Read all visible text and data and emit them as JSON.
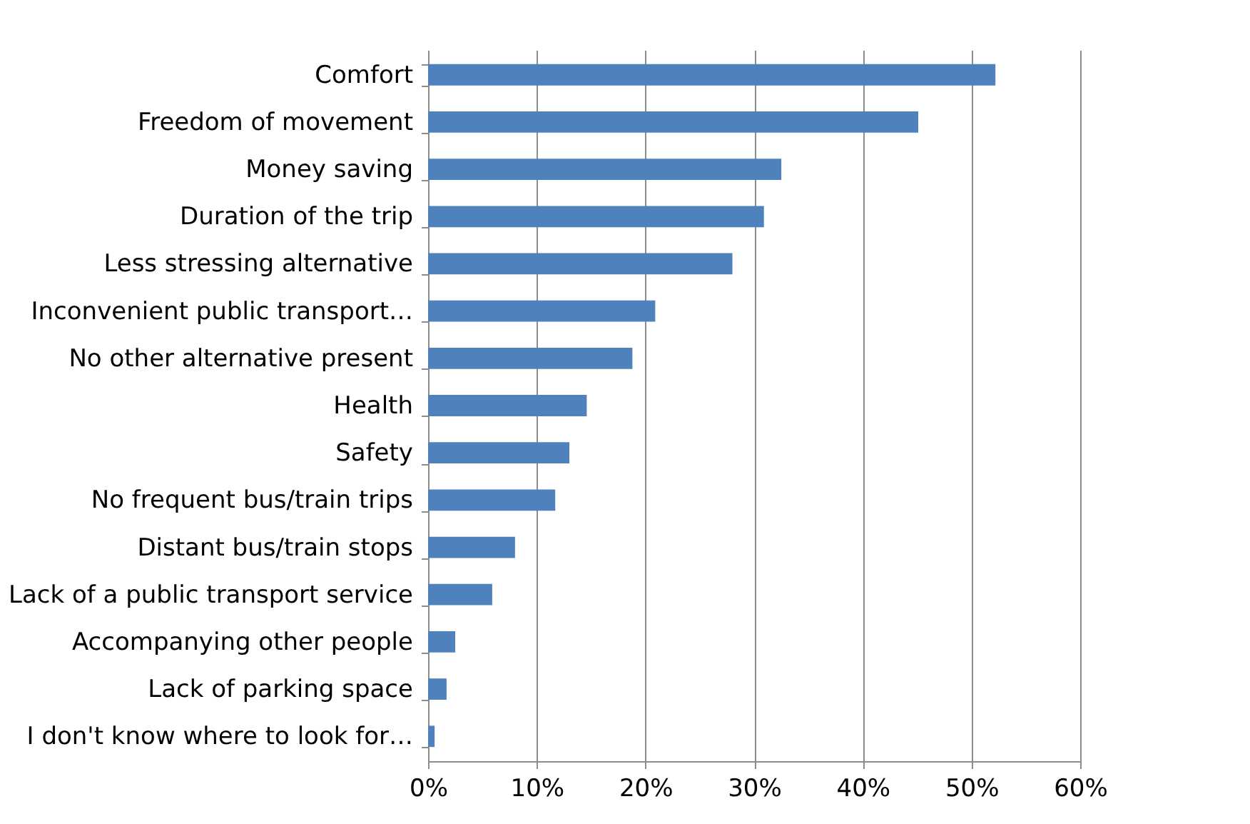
{
  "chart_data": {
    "type": "bar",
    "orientation": "horizontal",
    "categories": [
      "Comfort",
      "Freedom of movement",
      "Money saving",
      "Duration of the trip",
      "Less stressing alternative",
      "Inconvenient public transport…",
      "No other alternative present",
      "Health",
      "Safety",
      "No frequent bus/train trips",
      "Distant bus/train stops",
      "Lack of a public transport service",
      "Accompanying other people",
      "Lack of parking space",
      "I don't know where to look for…"
    ],
    "values": [
      52.2,
      45.1,
      32.5,
      30.9,
      28.0,
      20.9,
      18.8,
      14.6,
      13.0,
      11.7,
      8.0,
      5.9,
      2.5,
      1.7,
      0.6
    ],
    "color": "#4f81bd",
    "xlim": [
      0,
      60
    ],
    "xticks": [
      {
        "value": 0,
        "label": "0%"
      },
      {
        "value": 10,
        "label": "10%"
      },
      {
        "value": 20,
        "label": "20%"
      },
      {
        "value": 30,
        "label": "30%"
      },
      {
        "value": 40,
        "label": "40%"
      },
      {
        "value": 50,
        "label": "50%"
      },
      {
        "value": 60,
        "label": "60%"
      }
    ],
    "grid": "x",
    "legend": false
  }
}
